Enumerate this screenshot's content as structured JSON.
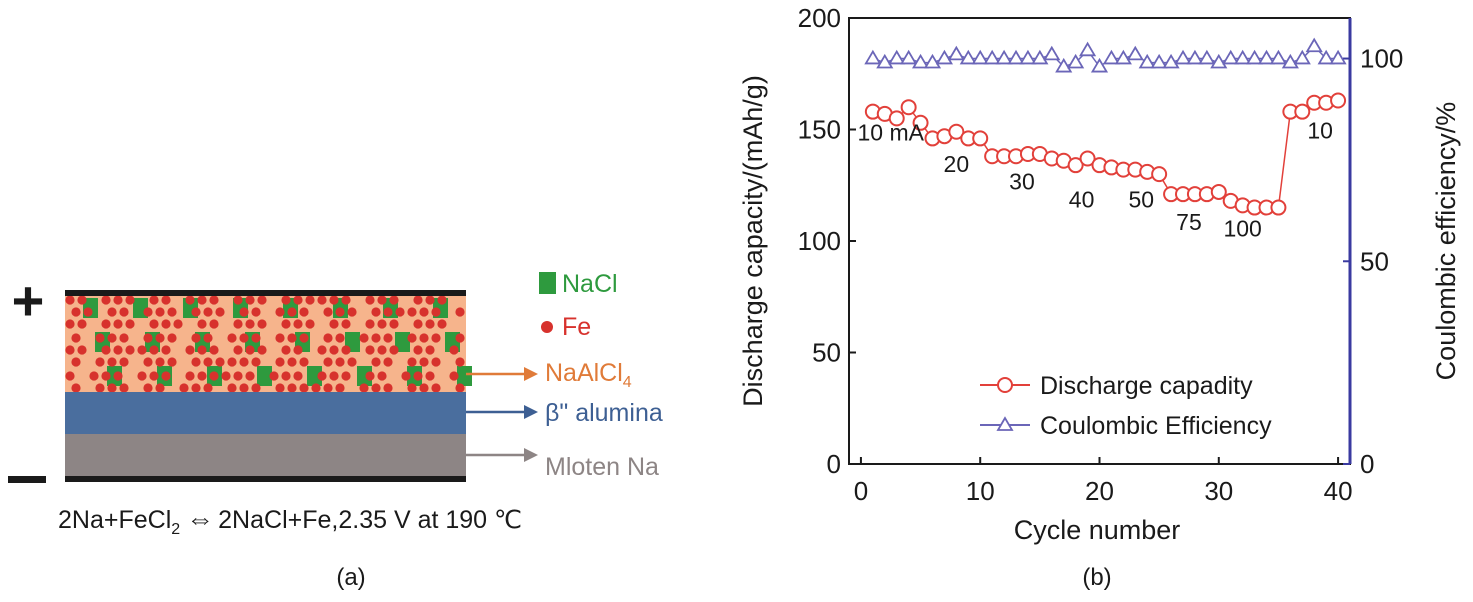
{
  "panel_a": {
    "caption": "(a)",
    "plus_sign": "+",
    "minus_sign": "−",
    "legend": {
      "nacl": "NaCl",
      "fe": "Fe"
    },
    "layers": {
      "naalcl4": {
        "base": "NaAlCl",
        "sub": "4"
      },
      "alumina": "β\" alumina",
      "molten": "Mloten Na"
    },
    "reaction": {
      "left": "2Na+FeCl",
      "left_sub": "2",
      "arrow": "⇔",
      "right": "2NaCl+Fe,2.35 V at 190 ℃"
    },
    "colors": {
      "nacl": "#2e9a3e",
      "fe": "#d7322d",
      "cathode": "#f6b48c",
      "alumina": "#4a6e9e",
      "molten": "#8d8585",
      "naalcl4_text": "#e07b39",
      "alumina_text": "#3d5f93",
      "molten_text": "#8d8585"
    }
  },
  "panel_b": {
    "caption": "(b)"
  },
  "chart_data": {
    "type": "scatter",
    "xlabel": "Cycle number",
    "ylabel": "Discharge capacity/(mAh/g)",
    "y2label": "Coulombic efficiency/%",
    "xlim": [
      -1,
      41
    ],
    "ylim": [
      0,
      200
    ],
    "y2lim": [
      0,
      110
    ],
    "xticks": [
      0,
      10,
      20,
      30,
      40
    ],
    "yticks": [
      0,
      50,
      100,
      150,
      200
    ],
    "y2ticks": [
      0,
      50,
      100
    ],
    "grid": false,
    "legend_position": "bottom-right",
    "series": [
      {
        "name": "Discharge capadity",
        "axis": "left",
        "marker": "circle",
        "color": "#e2403a",
        "x": [
          1,
          2,
          3,
          4,
          5,
          6,
          7,
          8,
          9,
          10,
          11,
          12,
          13,
          14,
          15,
          16,
          17,
          18,
          19,
          20,
          21,
          22,
          23,
          24,
          25,
          26,
          27,
          28,
          29,
          30,
          31,
          32,
          33,
          34,
          35,
          36,
          37,
          38,
          39,
          40
        ],
        "values": [
          158,
          157,
          155,
          160,
          153,
          146,
          147,
          149,
          146,
          146,
          138,
          138,
          138,
          139,
          139,
          137,
          136,
          134,
          137,
          134,
          133,
          132,
          132,
          131,
          130,
          121,
          121,
          121,
          121,
          122,
          118,
          116,
          115,
          115,
          115,
          158,
          158,
          162,
          162,
          163
        ]
      },
      {
        "name": "Coulombic Efficiency",
        "axis": "right",
        "marker": "triangle",
        "color": "#6b66b8",
        "x": [
          1,
          2,
          3,
          4,
          5,
          6,
          7,
          8,
          9,
          10,
          11,
          12,
          13,
          14,
          15,
          16,
          17,
          18,
          19,
          20,
          21,
          22,
          23,
          24,
          25,
          26,
          27,
          28,
          29,
          30,
          31,
          32,
          33,
          34,
          35,
          36,
          37,
          38,
          39,
          40
        ],
        "values": [
          100,
          99,
          100,
          100,
          99,
          99,
          100,
          101,
          100,
          100,
          100,
          100,
          100,
          100,
          100,
          101,
          98,
          99,
          102,
          98,
          100,
          100,
          101,
          99,
          99,
          99,
          100,
          100,
          100,
          99,
          100,
          100,
          100,
          100,
          100,
          99,
          100,
          103,
          100,
          100
        ]
      }
    ],
    "annotations": [
      {
        "text": "10 mA",
        "x": 2.5,
        "y": 145
      },
      {
        "text": "20",
        "x": 8,
        "y": 131
      },
      {
        "text": "30",
        "x": 13.5,
        "y": 123
      },
      {
        "text": "40",
        "x": 18.5,
        "y": 115
      },
      {
        "text": "50",
        "x": 23.5,
        "y": 115
      },
      {
        "text": "75",
        "x": 27.5,
        "y": 105
      },
      {
        "text": "100",
        "x": 32,
        "y": 102
      },
      {
        "text": "10",
        "x": 38.5,
        "y": 146
      }
    ],
    "colors": {
      "axis_left": "#1a1a1a",
      "axis_right": "#3a3aa0"
    }
  }
}
